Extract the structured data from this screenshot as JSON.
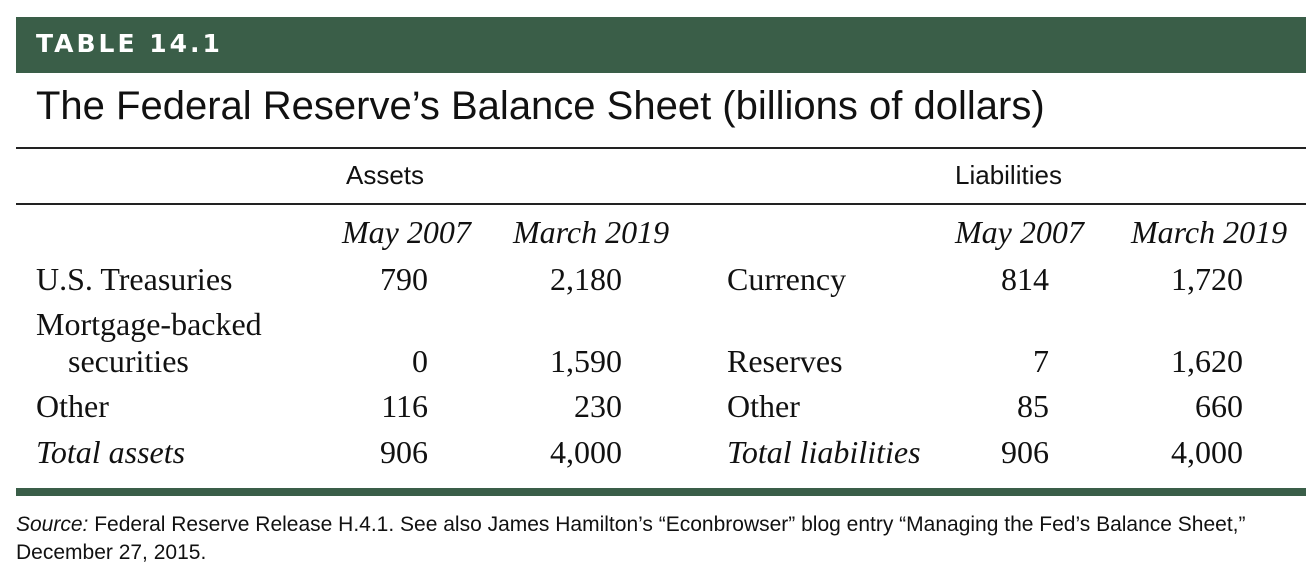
{
  "table_label": "TABLE 14.1",
  "title": "The Federal Reserve’s Balance Sheet (billions of dollars)",
  "assets": {
    "heading": "Assets",
    "columns": [
      "May 2007",
      "March 2019"
    ],
    "rows": [
      {
        "label": "U.S. Treasuries",
        "may_2007": "790",
        "march_2019": "2,180"
      },
      {
        "label_line1": "Mortgage-backed",
        "label_line2": "securities",
        "may_2007": "0",
        "march_2019": "1,590"
      },
      {
        "label": "Other",
        "may_2007": "116",
        "march_2019": "230"
      },
      {
        "label": "Total assets",
        "may_2007": "906",
        "march_2019": "4,000"
      }
    ]
  },
  "liabilities": {
    "heading": "Liabilities",
    "columns": [
      "May 2007",
      "March 2019"
    ],
    "rows": [
      {
        "label": "Currency",
        "may_2007": "814",
        "march_2019": "1,720"
      },
      {
        "label": "Reserves",
        "may_2007": "7",
        "march_2019": "1,620"
      },
      {
        "label": "Other",
        "may_2007": "85",
        "march_2019": "660"
      },
      {
        "label": "Total liabilities",
        "may_2007": "906",
        "march_2019": "4,000"
      }
    ]
  },
  "source": {
    "prefix": "Source:",
    "text": " Federal Reserve Release H.4.1. See also James Hamilton’s “Econbrowser” blog entry “Managing the Fed’s Balance Sheet,” December 27, 2015."
  },
  "colors": {
    "banner": "#3a5e48",
    "text": "#111111"
  }
}
